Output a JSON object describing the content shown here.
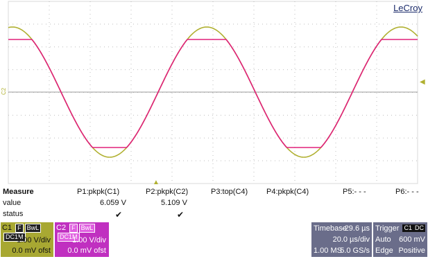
{
  "brand": "LeCroy",
  "scope": {
    "markers": {
      "trigger_level": "◀",
      "trigger_pos": "▲",
      "ch2_ground": "C2"
    }
  },
  "measure": {
    "header": "Measure",
    "row_value": "value",
    "row_status": "status",
    "params": [
      {
        "label": "P1:pkpk(C1)",
        "value": "6.059 V",
        "status": "✔"
      },
      {
        "label": "P2:pkpk(C2)",
        "value": "5.109 V",
        "status": "✔"
      },
      {
        "label": "P3:top(C4)",
        "value": "",
        "status": ""
      },
      {
        "label": "P4:pkpk(C4)",
        "value": "",
        "status": ""
      },
      {
        "label": "P5:- - -",
        "value": "",
        "status": ""
      },
      {
        "label": "P6:- - -",
        "value": "",
        "status": ""
      }
    ]
  },
  "channels": {
    "c1": {
      "name": "C1",
      "tags": [
        "F",
        "BwL",
        "DC1M"
      ],
      "vdiv": "1.00 V/div",
      "offset": "0.0 mV ofst",
      "color": "#a8a832"
    },
    "c2": {
      "name": "C2",
      "tags": [
        "F",
        "BwL",
        "DC1M"
      ],
      "vdiv": "1.00 V/div",
      "offset": "0.0 mV ofst",
      "color": "#c030c0"
    }
  },
  "timebase": {
    "label": "Timebase",
    "delay": "-29.6 µs",
    "tdiv": "20.0 µs/div",
    "samples": "1.00 MS",
    "rate": "5.0 GS/s"
  },
  "trigger": {
    "label": "Trigger",
    "tags": [
      "C1",
      "DC"
    ],
    "mode": "Auto",
    "level": "600 mV",
    "type": "Edge",
    "slope": "Positive"
  }
}
